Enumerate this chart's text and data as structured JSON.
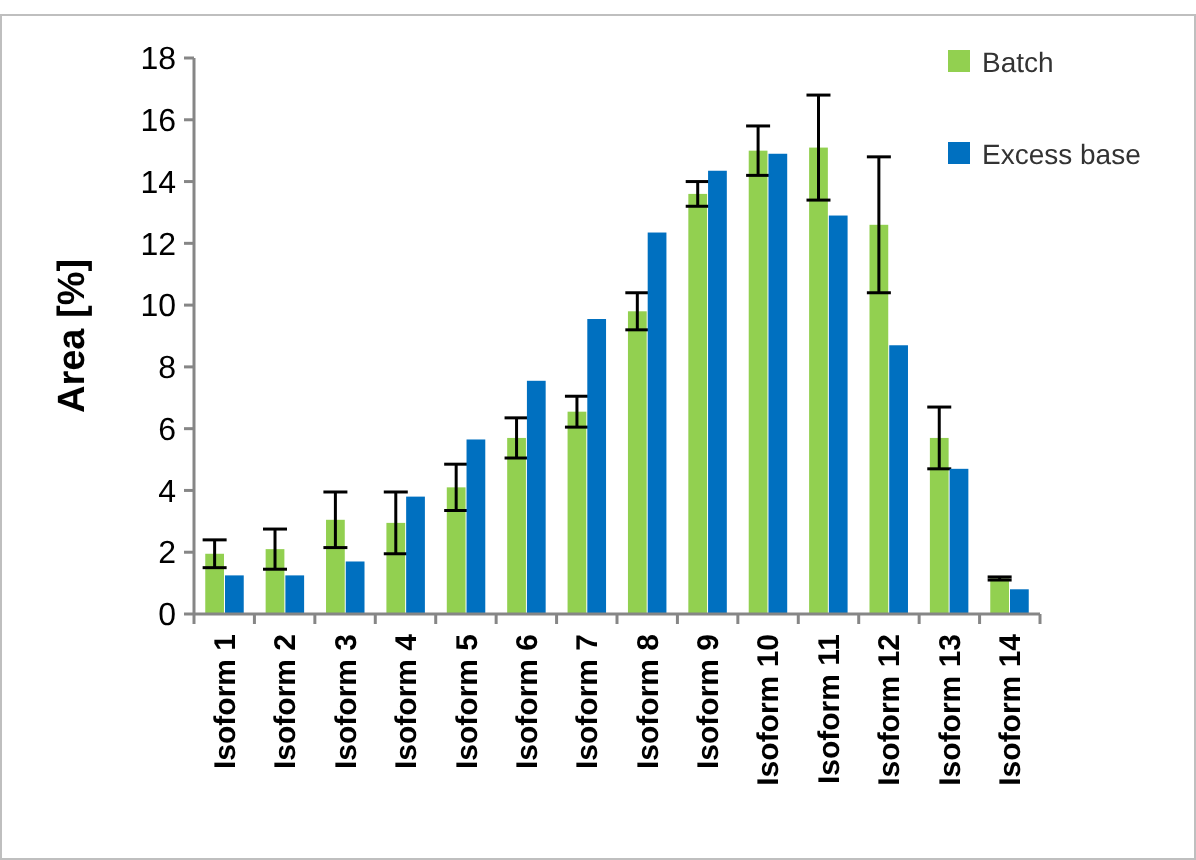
{
  "chart_data": {
    "type": "bar",
    "ylabel": "Area [%]",
    "categories": [
      "Isoform 1",
      "Isoform 2",
      "Isoform 3",
      "Isoform 4",
      "Isoform 5",
      "Isoform 6",
      "Isoform 7",
      "Isoform 8",
      "Isoform 9",
      "Isoform 10",
      "Isoform 11",
      "Isoform 12",
      "Isoform 13",
      "Isoform 14"
    ],
    "series": [
      {
        "name": "Batch",
        "color": "#92d050",
        "values": [
          1.95,
          2.1,
          3.05,
          2.95,
          4.1,
          5.7,
          6.55,
          9.8,
          13.6,
          15.0,
          15.1,
          12.6,
          5.7,
          1.15
        ],
        "errors": [
          0.45,
          0.65,
          0.9,
          1.0,
          0.75,
          0.65,
          0.5,
          0.6,
          0.4,
          0.8,
          1.7,
          2.2,
          1.0,
          0.05
        ]
      },
      {
        "name": "Excess base",
        "color": "#0070c0",
        "values": [
          1.25,
          1.25,
          1.7,
          3.8,
          5.65,
          7.55,
          9.55,
          12.35,
          14.35,
          14.9,
          12.9,
          8.7,
          4.7,
          0.8
        ]
      }
    ],
    "ylim": [
      0,
      18
    ],
    "yticks": [
      0,
      2,
      4,
      6,
      8,
      10,
      12,
      14,
      16,
      18
    ],
    "grid": false,
    "legend": "top right"
  }
}
